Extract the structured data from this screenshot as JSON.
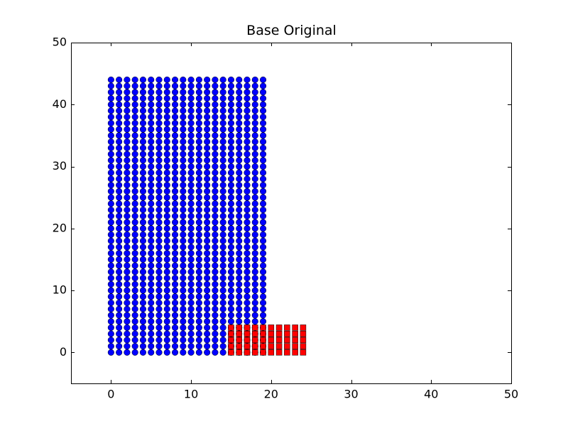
{
  "chart_data": {
    "type": "scatter",
    "title": "Base Original",
    "xlabel": "",
    "ylabel": "",
    "xlim": [
      -5,
      50
    ],
    "ylim": [
      -5,
      50
    ],
    "xticks": [
      0,
      10,
      20,
      30,
      40,
      50
    ],
    "yticks": [
      0,
      10,
      20,
      30,
      40,
      50
    ],
    "grid": false,
    "series": [
      {
        "marker": "circle",
        "color": "#0000ff",
        "x_range": {
          "start": 0,
          "end": 19,
          "step": 1
        },
        "y_range": {
          "start": 0,
          "end": 44,
          "step": 1
        }
      },
      {
        "marker": "square",
        "color": "#ff0000",
        "x_range": {
          "start": 15,
          "end": 24.5,
          "step": 1
        },
        "y_range": {
          "start": 0,
          "end": 4.5,
          "step": 1
        }
      }
    ]
  }
}
